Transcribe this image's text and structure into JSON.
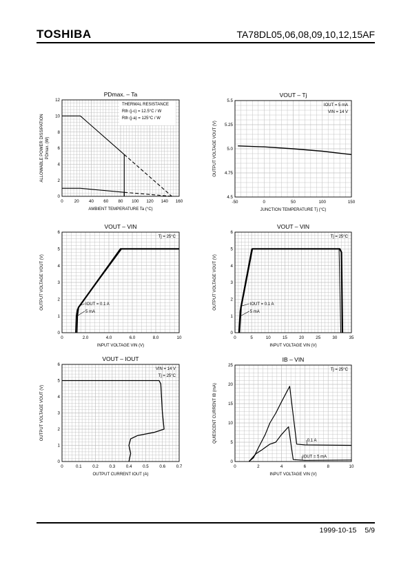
{
  "header": {
    "brand": "TOSHIBA",
    "part": "TA78DL05,06,08,09,10,12,15AF"
  },
  "footer": {
    "date": "1999-10-15",
    "page": "5/9"
  },
  "chart_data": [
    {
      "id": "pd-ta",
      "type": "line",
      "title": "PDmax. – Ta",
      "xlabel": "AMBIENT TEMPERATURE   Ta   (°C)",
      "ylabel": "ALLOWABLE POWER DISSIPATION",
      "ylabel2": "PDmax.   (W)",
      "xlim": [
        0,
        160
      ],
      "ylim": [
        0,
        12
      ],
      "xticks": [
        0,
        20,
        40,
        60,
        80,
        100,
        120,
        140,
        160
      ],
      "yticks": [
        0,
        2,
        4,
        6,
        8,
        10,
        12
      ],
      "grid": true,
      "legend_lines": [
        "THERMAL RESISTANCE",
        "Rth (j-c) = 12.5°C / W",
        "Rth (j-a) = 125°C / W"
      ],
      "series": [
        {
          "values": [
            [
              0,
              10
            ],
            [
              25,
              10
            ],
            [
              85,
              5.2
            ]
          ],
          "style": "solid",
          "width": 1.1
        },
        {
          "values": [
            [
              85,
              5.2
            ],
            [
              150,
              0
            ]
          ],
          "style": "dashed",
          "width": 1.1
        },
        {
          "values": [
            [
              85,
              5.2
            ],
            [
              85,
              0
            ]
          ],
          "style": "solid",
          "width": 1.1
        },
        {
          "values": [
            [
              0,
              1
            ],
            [
              25,
              1
            ],
            [
              85,
              0.5
            ]
          ],
          "style": "solid",
          "width": 1.1
        },
        {
          "values": [
            [
              85,
              0.5
            ],
            [
              150,
              0
            ]
          ],
          "style": "dashed",
          "width": 1.1
        },
        {
          "values": [
            [
              85,
              0.5
            ],
            [
              85,
              0
            ]
          ],
          "style": "solid",
          "width": 1.1
        }
      ],
      "annotations": []
    },
    {
      "id": "vout-tj",
      "type": "line",
      "title": "VOUT – Tj",
      "xlabel": "JUNCTION TEMPERATURE   Tj   (°C)",
      "ylabel": "OUTPUT VOLTAGE   VOUT   (V)",
      "xlim": [
        -50,
        150
      ],
      "ylim": [
        4.5,
        5.5
      ],
      "xticks": [
        -50,
        0,
        50,
        100,
        150
      ],
      "yticks": [
        4.5,
        4.75,
        5.0,
        5.25,
        5.5
      ],
      "ytick_labels": [
        "4.5",
        "4.75",
        "5.0",
        "5.25",
        "5.5"
      ],
      "grid": true,
      "legend_lines": [
        "IOUT = 5 mA",
        "VIN = 14 V"
      ],
      "series": [
        {
          "values": [
            [
              -45,
              5.03
            ],
            [
              0,
              5.02
            ],
            [
              50,
              5.0
            ],
            [
              100,
              4.975
            ],
            [
              150,
              4.94
            ]
          ],
          "style": "solid",
          "width": 1.4
        }
      ],
      "annotations": []
    },
    {
      "id": "vout-vin-a",
      "type": "line",
      "title": "VOUT – VIN",
      "xlabel": "INPUT VOLTAGE   VIN   (V)",
      "ylabel": "OUTPUT VOLTAGE   VOUT   (V)",
      "xlim": [
        0,
        10
      ],
      "ylim": [
        0,
        6
      ],
      "xticks": [
        0,
        2.0,
        4.0,
        6.0,
        8.0,
        10
      ],
      "xtick_labels": [
        "0",
        "2.0",
        "4.0",
        "6.0",
        "8.0",
        "10"
      ],
      "yticks": [
        0,
        1,
        2,
        3,
        4,
        5,
        6
      ],
      "grid": true,
      "legend_lines": [
        "Tj = 25°C"
      ],
      "series": [
        {
          "values": [
            [
              1.25,
              0
            ],
            [
              1.3,
              1.0
            ],
            [
              1.4,
              1.5
            ],
            [
              5.0,
              5.0
            ],
            [
              10,
              5.0
            ]
          ],
          "style": "solid",
          "width": 2.2
        },
        {
          "values": [
            [
              1.15,
              0
            ],
            [
              1.2,
              1.0
            ],
            [
              1.3,
              1.4
            ],
            [
              5.1,
              5.0
            ]
          ],
          "style": "solid",
          "width": 1.0
        }
      ],
      "annotations": [
        {
          "text": "IOUT = 0.1 A",
          "at": [
            2.0,
            1.65
          ],
          "arrow_to": [
            1.45,
            1.6
          ]
        },
        {
          "text": "5 mA",
          "at": [
            2.0,
            1.2
          ],
          "arrow_to": [
            1.3,
            1.0
          ]
        }
      ]
    },
    {
      "id": "vout-vin-b",
      "type": "line",
      "title": "VOUT – VIN",
      "xlabel": "INPUT VOLTAGE   VIN   (V)",
      "ylabel": "OUTPUT VOLTAGE   VOUT   (V)",
      "xlim": [
        0,
        35
      ],
      "ylim": [
        0,
        6
      ],
      "xticks": [
        0,
        5,
        10,
        15,
        20,
        25,
        30,
        35
      ],
      "yticks": [
        0,
        1,
        2,
        3,
        4,
        5,
        6
      ],
      "grid": true,
      "legend_lines": [
        "Tj = 25°C"
      ],
      "series": [
        {
          "values": [
            [
              1.3,
              0
            ],
            [
              1.8,
              1.5
            ],
            [
              5.2,
              5.0
            ],
            [
              31.5,
              5.0
            ],
            [
              32.0,
              4.8
            ],
            [
              32.3,
              0
            ]
          ],
          "style": "solid",
          "width": 2.2
        },
        {
          "values": [
            [
              1.1,
              0
            ],
            [
              1.5,
              1.3
            ],
            [
              5.0,
              5.0
            ],
            [
              31.3,
              5.0
            ],
            [
              31.8,
              0
            ]
          ],
          "style": "solid",
          "width": 1.0
        }
      ],
      "annotations": [
        {
          "text": "IOUT = 0.1 A",
          "at": [
            4.5,
            1.65
          ],
          "arrow_to": [
            2.1,
            1.6
          ]
        },
        {
          "text": "5 mA",
          "at": [
            4.5,
            1.2
          ],
          "arrow_to": [
            1.7,
            1.0
          ]
        }
      ]
    },
    {
      "id": "vout-iout",
      "type": "line",
      "title": "VOUT – IOUT",
      "xlabel": "OUTPUT CURRENT   IOUT   (A)",
      "ylabel": "OUTPUT VOLTAGE   VOUT   (V)",
      "xlim": [
        0,
        0.7
      ],
      "ylim": [
        0,
        6
      ],
      "xticks": [
        0,
        0.1,
        0.2,
        0.3,
        0.4,
        0.5,
        0.6,
        0.7
      ],
      "yticks": [
        0,
        1,
        2,
        3,
        4,
        5,
        6
      ],
      "grid": true,
      "legend_lines": [
        "VIN = 14 V",
        "Tj = 25°C"
      ],
      "series": [
        {
          "values": [
            [
              0,
              5.0
            ],
            [
              0.58,
              5.0
            ],
            [
              0.59,
              4.8
            ],
            [
              0.6,
              3.0
            ],
            [
              0.61,
              2.0
            ],
            [
              0.55,
              1.8
            ],
            [
              0.45,
              1.6
            ],
            [
              0.41,
              1.4
            ],
            [
              0.4,
              1.0
            ],
            [
              0.41,
              0.5
            ],
            [
              0.4,
              0
            ]
          ],
          "style": "solid",
          "width": 1.3
        }
      ],
      "annotations": []
    },
    {
      "id": "ib-vin",
      "type": "line",
      "title": "IB – VIN",
      "xlabel": "INPUT VOLTAGE   VIN   (V)",
      "ylabel": "QUIESCENT CURRENT   IB   (mA)",
      "xlim": [
        0,
        10
      ],
      "ylim": [
        0,
        25
      ],
      "xticks": [
        0,
        2,
        4,
        6,
        8,
        10
      ],
      "yticks": [
        0,
        5,
        10,
        15,
        20,
        25
      ],
      "grid": true,
      "legend_lines": [
        "Tj = 25°C"
      ],
      "series": [
        {
          "values": [
            [
              1.2,
              0
            ],
            [
              1.6,
              1.0
            ],
            [
              2.0,
              3.5
            ],
            [
              2.6,
              7
            ],
            [
              3.0,
              10
            ],
            [
              3.5,
              12.5
            ],
            [
              4.0,
              15.5
            ],
            [
              4.7,
              19.5
            ],
            [
              5.3,
              4.5
            ],
            [
              6,
              4.3
            ],
            [
              10,
              4.2
            ]
          ],
          "style": "solid",
          "width": 1.2
        },
        {
          "values": [
            [
              1.2,
              0
            ],
            [
              1.8,
              2.0
            ],
            [
              2.3,
              3.0
            ],
            [
              3.0,
              4.5
            ],
            [
              3.5,
              5.0
            ],
            [
              4.0,
              7.0
            ],
            [
              4.6,
              9.0
            ],
            [
              5.0,
              0.5
            ],
            [
              6,
              0.3
            ],
            [
              10,
              0.4
            ]
          ],
          "style": "solid",
          "width": 1.2
        }
      ],
      "annotations": [
        {
          "text": "0.1 A",
          "at": [
            6.2,
            5.2
          ],
          "arrow_to": [
            6.2,
            4.3
          ]
        },
        {
          "text": "IOUT = 5 mA",
          "at": [
            5.8,
            1.0
          ],
          "arrow_to": [
            5.8,
            0.3
          ]
        }
      ]
    }
  ]
}
